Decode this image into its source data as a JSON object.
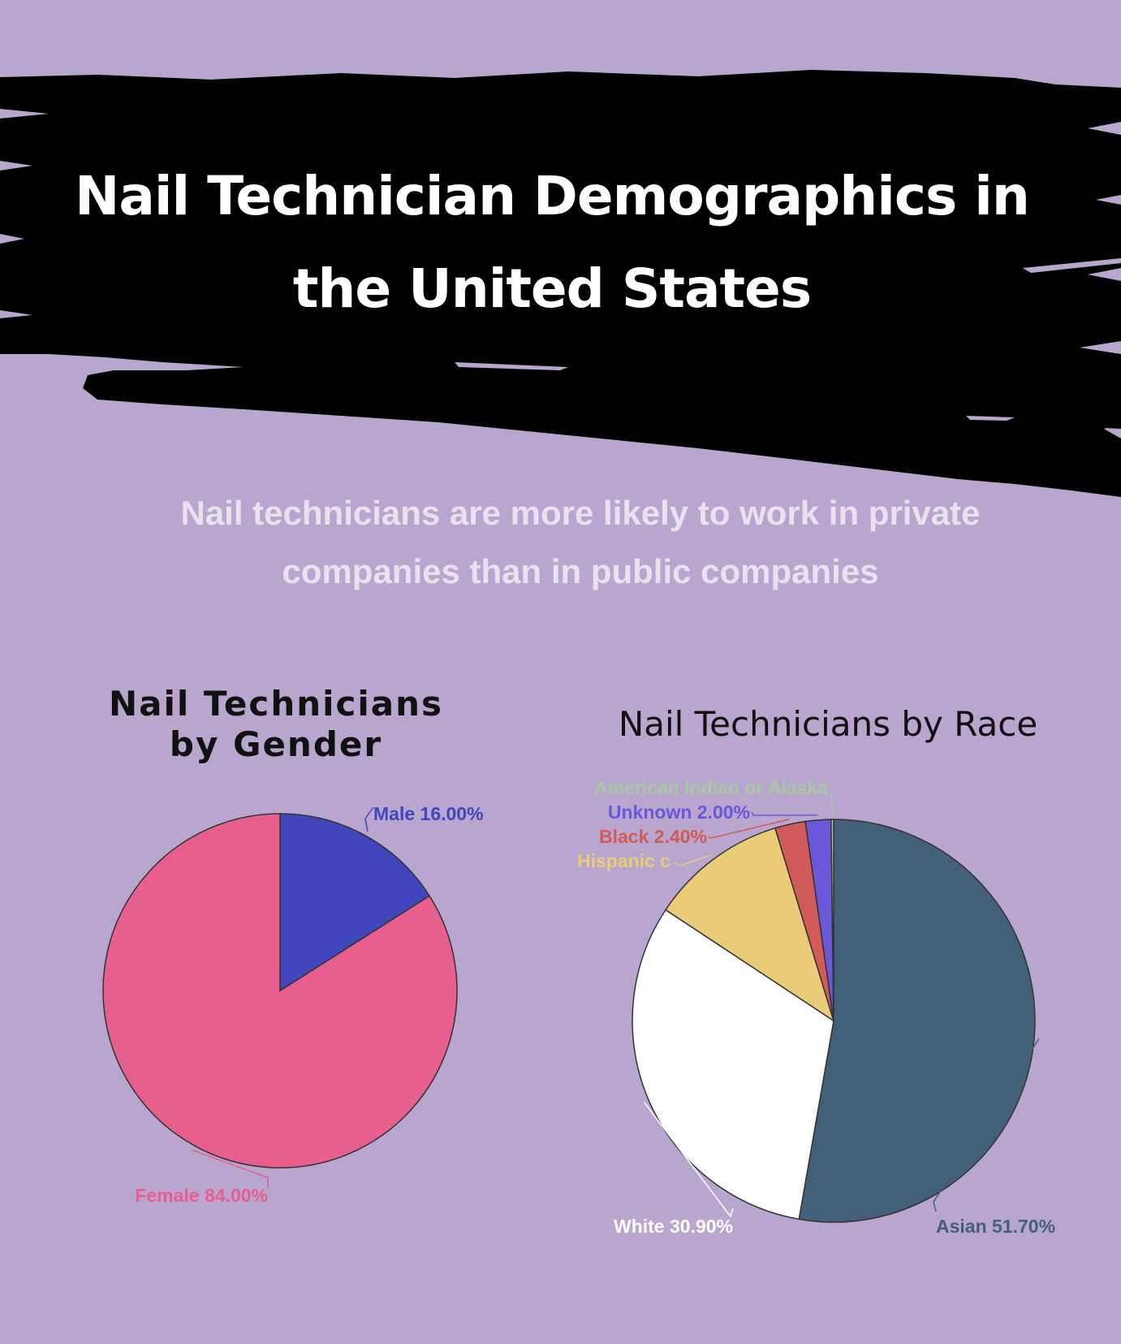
{
  "header": {
    "title_line1": "Nail Technician Demographics in",
    "title_line2": "the United States"
  },
  "subtitle": {
    "line1": "Nail technicians are more likely to work in private",
    "line2": "companies than in public companies"
  },
  "colors": {
    "background": "#b8a6cf",
    "brush": "#000000"
  },
  "chart_data": [
    {
      "type": "pie",
      "title_line1": "Nail Technicians",
      "title_line2": "by Gender",
      "slices": [
        {
          "label": "Male 16.00%",
          "value": 16.0,
          "color": "#4146bc"
        },
        {
          "label": "Female 84.00%",
          "value": 84.0,
          "color": "#e75f8e"
        }
      ]
    },
    {
      "type": "pie",
      "title": "Nail Technicians by Race",
      "slices": [
        {
          "label": "Asian 51.70%",
          "value": 51.7,
          "color": "#426178"
        },
        {
          "label": "White 30.90%",
          "value": 30.9,
          "color": "#ffffff"
        },
        {
          "label": "Hispanic c",
          "value": 10.8,
          "color": "#e9cb78"
        },
        {
          "label": "Black 2.40%",
          "value": 2.4,
          "color": "#d15b58"
        },
        {
          "label": "Unknown 2.00%",
          "value": 2.0,
          "color": "#6a57d9"
        },
        {
          "label": "American Indian or Alaska",
          "value": 0.2,
          "color": "#a7c8a0"
        }
      ]
    }
  ]
}
